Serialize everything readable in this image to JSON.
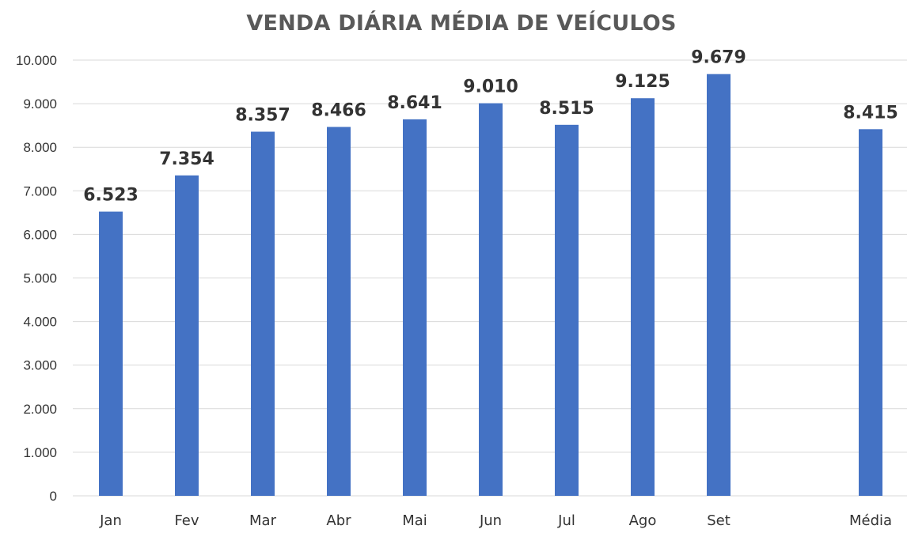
{
  "chart_data": {
    "type": "bar",
    "title": "VENDA DIÁRIA MÉDIA DE VEÍCULOS",
    "xlabel": "",
    "ylabel": "",
    "categories": [
      "Jan",
      "Fev",
      "Mar",
      "Abr",
      "Mai",
      "Jun",
      "Jul",
      "Ago",
      "Set",
      "Média"
    ],
    "values": [
      6523,
      7354,
      8357,
      8466,
      8641,
      9010,
      8515,
      9125,
      9679,
      8415
    ],
    "data_labels": [
      "6.523",
      "7.354",
      "8.357",
      "8.466",
      "8.641",
      "9.010",
      "8.515",
      "9.125",
      "9.679",
      "8.415"
    ],
    "ylim": [
      0,
      10000
    ],
    "y_ticks": [
      0,
      1000,
      2000,
      3000,
      4000,
      5000,
      6000,
      7000,
      8000,
      9000,
      10000
    ],
    "y_tick_labels": [
      "0",
      "1.000",
      "2.000",
      "3.000",
      "4.000",
      "5.000",
      "6.000",
      "7.000",
      "8.000",
      "9.000",
      "10.000"
    ],
    "grid": true,
    "legend": "none",
    "colors": {
      "bar": "#4472C4",
      "grid": "#D9D9D9",
      "text": "#333333",
      "title": "#595959"
    }
  }
}
